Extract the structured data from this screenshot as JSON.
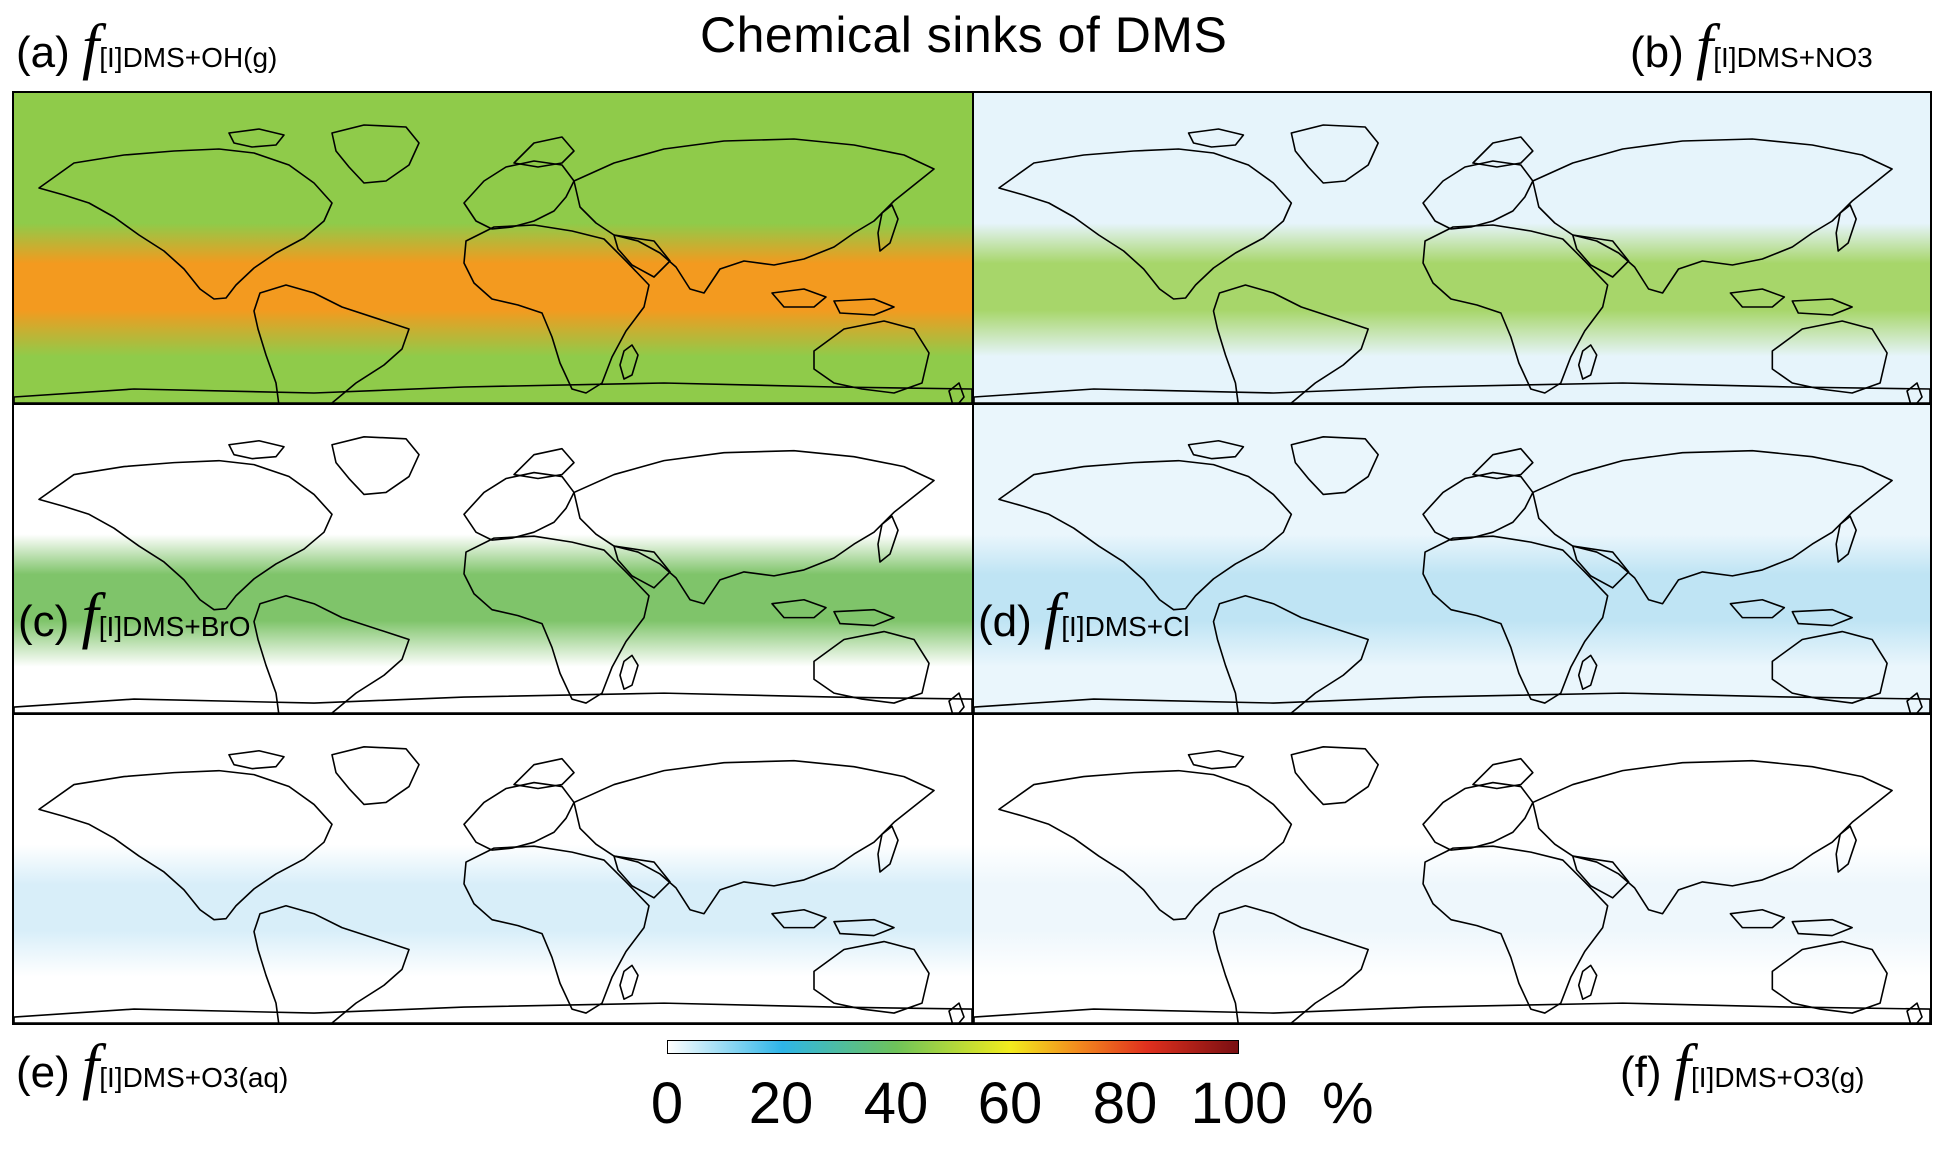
{
  "title": "Chemical sinks of DMS",
  "panels": [
    {
      "letter": "(a)",
      "f": "f",
      "sub": "[I]DMS+OH(g)",
      "base_color": "#8fcb4a",
      "band_color": "#f39a1f"
    },
    {
      "letter": "(b)",
      "f": "f",
      "sub": "[I]DMS+NO3",
      "base_color": "#e6f4fb",
      "band_color": "#a7d66a"
    },
    {
      "letter": "(c)",
      "f": "f",
      "sub": "[I]DMS+BrO",
      "base_color": "#ffffff",
      "band_color": "#7fc46a"
    },
    {
      "letter": "(d)",
      "f": "f",
      "sub": "[I]DMS+Cl",
      "base_color": "#eaf6fc",
      "band_color": "#bfe4f4"
    },
    {
      "letter": "(e)",
      "f": "f",
      "sub": "[I]DMS+O3(aq)",
      "base_color": "#ffffff",
      "band_color": "#d8eef9"
    },
    {
      "letter": "(f)",
      "f": "f",
      "sub": "[I]DMS+O3(g)",
      "base_color": "#ffffff",
      "band_color": "#eef7fc"
    }
  ],
  "colorbar": {
    "ticks": [
      "0",
      "20",
      "40",
      "60",
      "80",
      "100"
    ],
    "unit": "%",
    "range": [
      0,
      100
    ],
    "colors": [
      "#ffffff",
      "#2eb5e8",
      "#6ec35a",
      "#f2ec1e",
      "#f28a1e",
      "#e0301e",
      "#7a0f12"
    ]
  }
}
